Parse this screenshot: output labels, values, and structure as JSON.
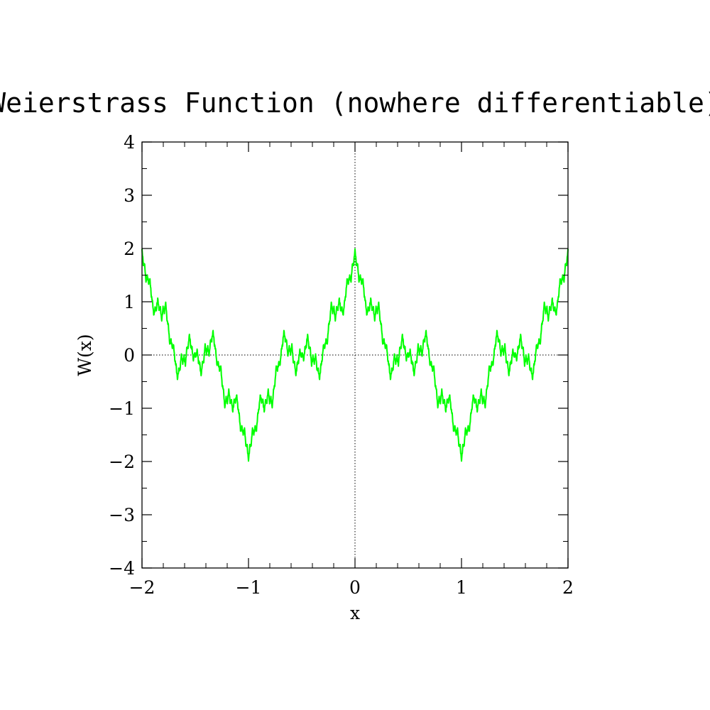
{
  "chart_data": {
    "type": "line",
    "title": "Weierstrass Function (nowhere differentiable)",
    "xlabel": "x",
    "ylabel": "W(x)",
    "xlim": [
      -2,
      2
    ],
    "ylim": [
      -4,
      4
    ],
    "x_ticks": [
      {
        "value": -2,
        "label": "−2"
      },
      {
        "value": -1,
        "label": "−1"
      },
      {
        "value": 0,
        "label": "0"
      },
      {
        "value": 1,
        "label": "1"
      },
      {
        "value": 2,
        "label": "2"
      }
    ],
    "y_ticks": [
      {
        "value": -4,
        "label": "−4"
      },
      {
        "value": -3,
        "label": "−3"
      },
      {
        "value": -2,
        "label": "−2"
      },
      {
        "value": -1,
        "label": "−1"
      },
      {
        "value": 0,
        "label": "0"
      },
      {
        "value": 1,
        "label": "1"
      },
      {
        "value": 2,
        "label": "2"
      },
      {
        "value": 3,
        "label": "3"
      },
      {
        "value": 4,
        "label": "4"
      }
    ],
    "grid": false,
    "zero_lines": true,
    "series": [
      {
        "color": "#00ff00",
        "function": "W(x) = sum_{n=0}^{N} a^n cos(b^n * pi * x)",
        "a": 0.5,
        "b": 3,
        "terms": 8,
        "samples": 1600
      }
    ]
  }
}
